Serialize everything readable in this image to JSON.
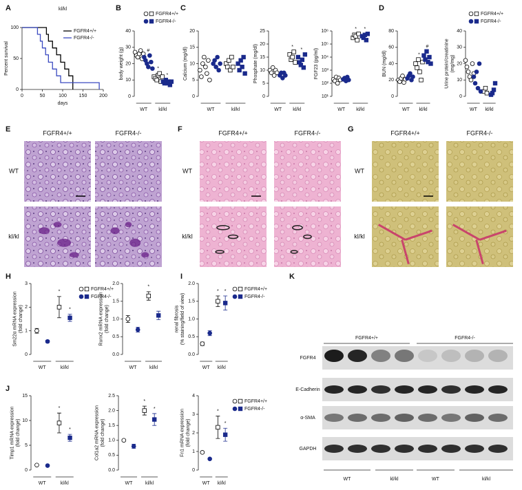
{
  "chart_data": [
    {
      "type": "survival",
      "label": "A",
      "title": "kl/kl",
      "ylabel": [
        "Percent survival"
      ],
      "xlabel": "days",
      "xlim": [
        0,
        200
      ],
      "xticks": [
        0,
        50,
        100,
        150,
        200
      ],
      "ylim": [
        0,
        100
      ],
      "yticks": [
        0,
        50,
        100
      ],
      "legend": "upper right",
      "series": [
        {
          "name": "FGFR4+/+",
          "color": "#000000",
          "x": [
            0,
            55,
            60,
            65,
            75,
            85,
            95,
            105,
            115,
            125
          ],
          "values": [
            100,
            100,
            89,
            78,
            67,
            56,
            44,
            33,
            22,
            0
          ]
        },
        {
          "name": "FGFR4-/-",
          "color": "#3a4ac0",
          "x": [
            0,
            38,
            45,
            50,
            58,
            65,
            75,
            85,
            95,
            190
          ],
          "values": [
            100,
            89,
            78,
            67,
            56,
            44,
            33,
            22,
            11,
            0
          ]
        }
      ]
    },
    {
      "type": "dotplot",
      "label": "B",
      "ylabel": [
        "body weight (g)"
      ],
      "groups": [
        "WT",
        "kl/kl"
      ],
      "markers": [
        "circle",
        "square"
      ],
      "ylim": [
        0,
        40
      ],
      "yticks": [
        0,
        10,
        20,
        30,
        40
      ],
      "legend": "top",
      "series": [
        {
          "name": "FGFR4+/+",
          "color": "#000000",
          "filled": false,
          "values": [
            [
              27,
              25,
              24,
              26,
              28,
              23,
              26
            ],
            [
              12,
              11,
              10,
              13,
              14,
              9,
              12
            ]
          ],
          "annotations": [
            null,
            "*"
          ]
        },
        {
          "name": "FGFR4-/-",
          "color": "#1a2a8c",
          "filled": true,
          "values": [
            [
              24,
              22,
              20,
              18,
              25,
              21,
              17
            ],
            [
              9,
              8,
              10,
              8,
              9,
              7,
              9
            ]
          ],
          "annotations": [
            "#",
            "*"
          ]
        }
      ]
    },
    {
      "type": "dotplot",
      "label": "C",
      "ylabel": [
        "Calcium (mg/dl)"
      ],
      "groups": [
        "WT",
        "kl/kl"
      ],
      "markers": [
        "circle",
        "square"
      ],
      "ylim": [
        0,
        20
      ],
      "yticks": [
        0,
        5,
        10,
        15,
        20
      ],
      "series": [
        {
          "color": "#000000",
          "filled": false,
          "values": [
            [
              8,
              6,
              10,
              12,
              9,
              7,
              11,
              5
            ],
            [
              10,
              9,
              11,
              8,
              12,
              9
            ]
          ],
          "annotations": [
            null,
            null
          ]
        },
        {
          "color": "#1a2a8c",
          "filled": true,
          "values": [
            [
              10,
              11,
              9,
              12,
              8,
              10
            ],
            [
              10,
              8,
              11,
              9,
              12,
              7
            ]
          ],
          "annotations": [
            null,
            null
          ]
        }
      ]
    },
    {
      "type": "dotplot",
      "ylabel": [
        "Phosphate (mg/dl)"
      ],
      "groups": [
        "WT",
        "kl/kl"
      ],
      "markers": [
        "circle",
        "square"
      ],
      "ylim": [
        0,
        25
      ],
      "yticks": [
        0,
        5,
        10,
        15,
        20,
        25
      ],
      "series": [
        {
          "color": "#000000",
          "filled": false,
          "values": [
            [
              10,
              9,
              11,
              8,
              10,
              9
            ],
            [
              16,
              14,
              15,
              17,
              13
            ]
          ],
          "annotations": [
            null,
            "*"
          ]
        },
        {
          "color": "#1a2a8c",
          "filled": true,
          "values": [
            [
              8,
              9,
              7,
              9,
              8
            ],
            [
              15,
              13,
              12,
              14,
              11,
              16
            ]
          ],
          "annotations": [
            null,
            "*"
          ]
        }
      ]
    },
    {
      "type": "dotplot",
      "ylabel": [
        "FGF23 (pg/ml)"
      ],
      "groups": [
        "WT",
        "kl/kl"
      ],
      "markers": [
        "circle",
        "square"
      ],
      "yscale": "log",
      "ylim": [
        10,
        1000000
      ],
      "yticks": [
        {
          "value": 10,
          "label": "10¹"
        },
        {
          "value": 100,
          "label": "10²"
        },
        {
          "value": 1000,
          "label": "10³"
        },
        {
          "value": 10000,
          "label": "10⁴"
        },
        {
          "value": 100000,
          "label": "10⁵"
        },
        {
          "value": 1000000,
          "label": "10⁶"
        }
      ],
      "series": [
        {
          "color": "#000000",
          "filled": false,
          "values": [
            [
              200,
              150,
              300,
              100,
              250,
              180
            ],
            [
              300000,
              500000,
              400000,
              200000,
              600000
            ]
          ],
          "annotations": [
            null,
            "*"
          ]
        },
        {
          "color": "#1a2a8c",
          "filled": true,
          "values": [
            [
              200,
              250,
              150,
              300,
              180
            ],
            [
              400000,
              300000,
              500000,
              200000,
              600000
            ]
          ],
          "annotations": [
            null,
            "*"
          ]
        }
      ]
    },
    {
      "type": "dotplot",
      "label": "D",
      "ylabel": [
        "BUN (mg/dl)"
      ],
      "groups": [
        "WT",
        "kl/kl"
      ],
      "markers": [
        "circle",
        "square"
      ],
      "ylim": [
        0,
        80
      ],
      "yticks": [
        0,
        20,
        40,
        60,
        80
      ],
      "series": [
        {
          "color": "#000000",
          "filled": false,
          "values": [
            [
              20,
              18,
              22,
              25,
              17,
              21
            ],
            [
              40,
              35,
              45,
              30,
              20,
              42
            ]
          ],
          "annotations": [
            null,
            "*"
          ]
        },
        {
          "color": "#1a2a8c",
          "filled": true,
          "values": [
            [
              22,
              25,
              28,
              20,
              24
            ],
            [
              50,
              45,
              55,
              42,
              48,
              40
            ]
          ],
          "annotations": [
            null,
            "#"
          ]
        }
      ]
    },
    {
      "type": "dotplot",
      "ylabel": [
        "Urine protein/creatinine",
        "(mg/mg)"
      ],
      "groups": [
        "WT",
        "kl/kl"
      ],
      "markers": [
        "circle",
        "square"
      ],
      "ylim": [
        0,
        40
      ],
      "yticks": [
        0,
        10,
        20,
        30,
        40
      ],
      "legend": "top",
      "series": [
        {
          "name": "FGFR4+/+",
          "color": "#000000",
          "filled": false,
          "values": [
            [
              22,
              18,
              15,
              12,
              10,
              20,
              14
            ],
            [
              3,
              5,
              2
            ]
          ],
          "annotations": [
            null,
            null
          ]
        },
        {
          "name": "FGFR4-/-",
          "color": "#1a2a8c",
          "filled": true,
          "values": [
            [
              12,
              8,
              15,
              5,
              20,
              3
            ],
            [
              1,
              2,
              4,
              8
            ]
          ],
          "annotations": [
            null,
            null
          ]
        }
      ]
    },
    {
      "type": "errorbar",
      "label": "H",
      "ylabel": [
        "Sm22α mRNA expression",
        "(fold change)"
      ],
      "groups": [
        "WT",
        "kl/kl"
      ],
      "markers": [
        "circle",
        "square"
      ],
      "ylim": [
        0,
        3
      ],
      "yticks": [
        0,
        1,
        2,
        3
      ],
      "legend": "right",
      "series": [
        {
          "name": "FGFR4+/+",
          "color": "#000000",
          "filled": false,
          "values": [
            1.0,
            2.0
          ],
          "errors": [
            0.1,
            0.45
          ],
          "annotations": [
            null,
            "*"
          ]
        },
        {
          "name": "FGFR4-/-",
          "color": "#1a2a8c",
          "filled": true,
          "values": [
            0.55,
            1.55
          ],
          "errors": [
            0.05,
            0.15
          ],
          "annotations": [
            null,
            "*"
          ]
        }
      ]
    },
    {
      "type": "errorbar",
      "ylabel": [
        "Runx2 mRNA expression",
        "(fold change)"
      ],
      "groups": [
        "WT",
        "kl/kl"
      ],
      "markers": [
        "circle",
        "square"
      ],
      "ylim": [
        0,
        2
      ],
      "yticks": [
        {
          "value": 0,
          "label": "0.0"
        },
        0.5,
        {
          "value": 1,
          "label": "1.0"
        },
        1.5,
        {
          "value": 2,
          "label": "2.0"
        }
      ],
      "series": [
        {
          "color": "#000000",
          "filled": false,
          "values": [
            1.0,
            1.65
          ],
          "errors": [
            0.1,
            0.12
          ],
          "annotations": [
            null,
            "*"
          ]
        },
        {
          "color": "#1a2a8c",
          "filled": true,
          "values": [
            0.7,
            1.1
          ],
          "errors": [
            0.07,
            0.12
          ],
          "annotations": [
            null,
            null
          ]
        }
      ]
    },
    {
      "type": "errorbar",
      "label": "I",
      "ylabel": [
        "renal fibrosis",
        "(% staining/field of view)"
      ],
      "groups": [
        "WT",
        "kl/kl"
      ],
      "markers": [
        "circle",
        "square"
      ],
      "ylim": [
        0,
        2
      ],
      "yticks": [
        {
          "value": 0,
          "label": "0.0"
        },
        0.5,
        {
          "value": 1,
          "label": "1.0"
        },
        1.5,
        {
          "value": 2,
          "label": "2.0"
        }
      ],
      "legend": "right",
      "series": [
        {
          "name": "FGFR4+/+",
          "color": "#000000",
          "filled": false,
          "values": [
            0.3,
            1.5
          ],
          "errors": [
            0.05,
            0.15
          ],
          "annotations": [
            null,
            "*"
          ]
        },
        {
          "name": "FGFR4-/-",
          "color": "#1a2a8c",
          "filled": true,
          "values": [
            0.6,
            1.45
          ],
          "errors": [
            0.07,
            0.2
          ],
          "annotations": [
            null,
            "*"
          ]
        }
      ]
    },
    {
      "type": "errorbar",
      "label": "J",
      "ylabel": [
        "Timp1 mRNA expression",
        "(fold change)"
      ],
      "groups": [
        "WT",
        "kl/kl"
      ],
      "markers": [
        "circle",
        "square"
      ],
      "ylim": [
        0,
        15
      ],
      "yticks": [
        0,
        5,
        10,
        15
      ],
      "series": [
        {
          "color": "#000000",
          "filled": false,
          "values": [
            1.0,
            9.5
          ],
          "errors": [
            0.1,
            2.0
          ],
          "annotations": [
            null,
            "*"
          ]
        },
        {
          "color": "#1a2a8c",
          "filled": true,
          "values": [
            0.9,
            6.5
          ],
          "errors": [
            0.1,
            0.7
          ],
          "annotations": [
            null,
            "*"
          ]
        }
      ]
    },
    {
      "type": "errorbar",
      "ylabel": [
        "Col1a2 mRNA expression",
        "(fold change)"
      ],
      "groups": [
        "WT",
        "kl/kl"
      ],
      "markers": [
        "circle",
        "square"
      ],
      "ylim": [
        0,
        2.5
      ],
      "yticks": [
        {
          "value": 0,
          "label": "0.0"
        },
        0.5,
        {
          "value": 1,
          "label": "1.0"
        },
        1.5,
        {
          "value": 2,
          "label": "2.0"
        },
        2.5
      ],
      "series": [
        {
          "color": "#000000",
          "filled": false,
          "values": [
            1.0,
            2.0
          ],
          "errors": [
            0.03,
            0.15
          ],
          "annotations": [
            null,
            "*"
          ]
        },
        {
          "color": "#1a2a8c",
          "filled": true,
          "values": [
            0.8,
            1.7
          ],
          "errors": [
            0.07,
            0.2
          ],
          "annotations": [
            null,
            "*"
          ]
        }
      ]
    },
    {
      "type": "errorbar",
      "ylabel": [
        "Fn1 mRNA expression",
        "(fold change)"
      ],
      "groups": [
        "WT",
        "kl/kl"
      ],
      "markers": [
        "circle",
        "square"
      ],
      "ylim": [
        0,
        4
      ],
      "yticks": [
        0,
        1,
        2,
        3,
        4
      ],
      "legend": "right",
      "series": [
        {
          "name": "FGFR4+/+",
          "color": "#000000",
          "filled": false,
          "values": [
            0.95,
            2.3
          ],
          "errors": [
            0.05,
            0.6
          ],
          "annotations": [
            null,
            "*"
          ]
        },
        {
          "name": "FGFR4-/-",
          "color": "#1a2a8c",
          "filled": true,
          "values": [
            0.6,
            1.9
          ],
          "errors": [
            0.03,
            0.35
          ],
          "annotations": [
            null,
            "*"
          ]
        }
      ]
    }
  ],
  "image_panels": [
    {
      "label": "E",
      "columns": [
        "FGFR4+/+",
        "FGFR4-/-"
      ],
      "rows": [
        "WT",
        "kl/kl"
      ]
    },
    {
      "label": "F",
      "columns": [
        "FGFR4+/+",
        "FGFR4-/-"
      ],
      "rows": [
        "WT",
        "kl/kl"
      ]
    },
    {
      "label": "G",
      "columns": [
        "FGFR4+/+",
        "FGFR4-/-"
      ],
      "rows": [
        "WT",
        "kl/kl"
      ]
    }
  ],
  "blot": {
    "label": "K",
    "groups": [
      "FGFR4+/+",
      "FGFR4-/-"
    ],
    "proteins": [
      "FGFR4",
      "E-Cadherin",
      "α-SMA",
      "GAPDH"
    ],
    "lanes": [
      "WT",
      "kl/kl",
      "WT",
      "kl/kl"
    ]
  }
}
